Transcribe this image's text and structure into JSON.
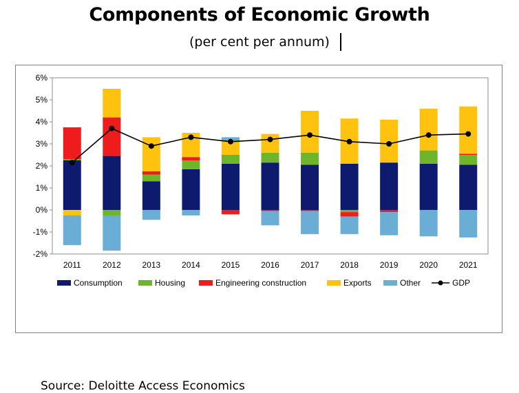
{
  "title": "Components of Economic Growth",
  "subtitle": "(per cent per annum)",
  "source": "Source: Deloitte Access Economics",
  "colors": {
    "Consumption": "#0d1a6e",
    "Housing": "#6fb52b",
    "Engineering construction": "#ee1c1c",
    "Exports": "#ffc20e",
    "Other": "#6aaed6",
    "GDP": "#000000"
  },
  "chart_data": {
    "type": "bar",
    "stacked": true,
    "categories": [
      "2011",
      "2012",
      "2013",
      "2014",
      "2015",
      "2016",
      "2017",
      "2018",
      "2019",
      "2020",
      "2021"
    ],
    "series": [
      {
        "name": "Consumption",
        "values": [
          2.25,
          2.45,
          1.3,
          1.85,
          2.1,
          2.15,
          2.05,
          2.1,
          2.15,
          2.1,
          2.05
        ]
      },
      {
        "name": "Housing",
        "values": [
          0.05,
          -0.25,
          0.3,
          0.4,
          0.4,
          0.45,
          0.55,
          -0.1,
          0.0,
          0.6,
          0.45
        ]
      },
      {
        "name": "Engineering construction",
        "values": [
          1.45,
          1.75,
          0.15,
          0.15,
          -0.2,
          -0.05,
          -0.05,
          -0.2,
          -0.1,
          0.0,
          0.05
        ]
      },
      {
        "name": "Exports",
        "values": [
          -0.25,
          1.3,
          1.55,
          1.1,
          0.6,
          0.85,
          1.9,
          2.05,
          1.95,
          1.9,
          2.15
        ]
      },
      {
        "name": "Other",
        "values": [
          -1.35,
          -1.6,
          -0.45,
          -0.25,
          0.2,
          -0.65,
          -1.05,
          -0.8,
          -1.05,
          -1.2,
          -1.25
        ]
      }
    ],
    "line": {
      "name": "GDP",
      "values": [
        2.15,
        3.7,
        2.9,
        3.3,
        3.1,
        3.2,
        3.4,
        3.1,
        3.0,
        3.4,
        3.45
      ]
    },
    "y_ticks": [
      "-2%",
      "-1%",
      "0%",
      "1%",
      "2%",
      "3%",
      "4%",
      "5%",
      "6%"
    ],
    "ylim": [
      -2,
      6
    ],
    "legend": [
      "Consumption",
      "Housing",
      "Engineering construction",
      "Exports",
      "Other",
      "GDP"
    ],
    "legend_position": "bottom",
    "grid": false
  }
}
